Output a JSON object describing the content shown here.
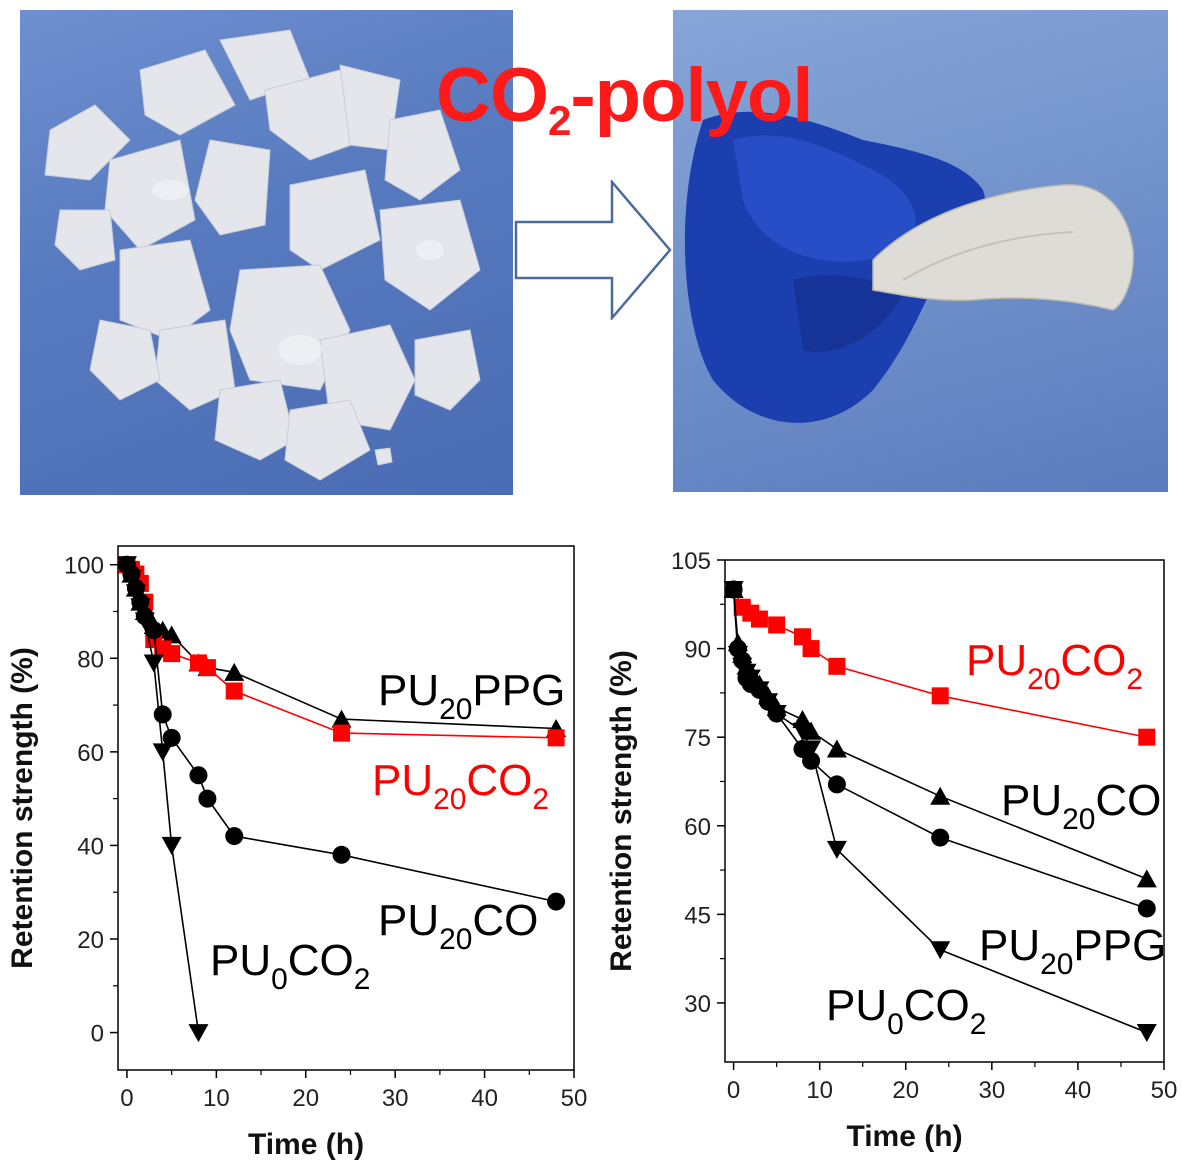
{
  "headline": {
    "main": "CO",
    "sub": "2",
    "rest": "-polyol",
    "color": "#ff1a1a"
  },
  "arrow": {
    "direction": "right"
  },
  "photos": {
    "left": "film fragments",
    "right": "flexible film held by gloved hand"
  },
  "chart_data": [
    {
      "type": "line",
      "xlabel": "Time (h)",
      "ylabel": "Retention strength (%)",
      "xlim": [
        -1,
        50
      ],
      "ylim": [
        -8,
        104
      ],
      "xticks": [
        0,
        10,
        20,
        30,
        40,
        50
      ],
      "yticks": [
        0,
        20,
        40,
        60,
        80,
        100
      ],
      "series": [
        {
          "name": "PU20PPG",
          "label_base": "PU",
          "label_sub": "20",
          "label_tail": "PPG",
          "label_sub2": "",
          "color": "#000000",
          "marker": "triangle-up",
          "x": [
            0,
            0.5,
            1,
            1.5,
            2,
            3,
            4,
            5,
            8,
            9,
            12,
            24,
            48
          ],
          "y": [
            100,
            98,
            95,
            92,
            90,
            87,
            86,
            85,
            79,
            78,
            77,
            67,
            65
          ]
        },
        {
          "name": "PU20CO2",
          "label_base": "PU",
          "label_sub": "20",
          "label_tail": "CO",
          "label_sub2": "2",
          "color": "#ff0000",
          "marker": "square",
          "x": [
            0,
            0.5,
            1,
            1.5,
            2,
            3,
            4,
            5,
            8,
            9,
            12,
            24,
            48
          ],
          "y": [
            100,
            99,
            98,
            96,
            92,
            84,
            82,
            81,
            79,
            78,
            73,
            64,
            63
          ]
        },
        {
          "name": "PU20CO",
          "label_base": "PU",
          "label_sub": "20",
          "label_tail": "CO",
          "label_sub2": "",
          "color": "#000000",
          "marker": "circle",
          "x": [
            0,
            0.5,
            1,
            1.5,
            2,
            3,
            4,
            5,
            8,
            9,
            12,
            24,
            48
          ],
          "y": [
            100,
            98,
            95,
            92,
            89,
            86,
            68,
            63,
            55,
            50,
            42,
            38,
            28
          ]
        },
        {
          "name": "PU0CO2",
          "label_base": "PU",
          "label_sub": "0",
          "label_tail": "CO",
          "label_sub2": "2",
          "color": "#000000",
          "marker": "triangle-down",
          "x": [
            0,
            0.5,
            1,
            1.5,
            2,
            3,
            4,
            5,
            8
          ],
          "y": [
            100,
            97,
            94,
            91,
            88,
            79,
            60,
            40,
            0
          ]
        }
      ]
    },
    {
      "type": "line",
      "xlabel": "Time (h)",
      "ylabel": "Retention strength (%)",
      "xlim": [
        -1,
        50
      ],
      "ylim": [
        20,
        105
      ],
      "xticks": [
        0,
        10,
        20,
        30,
        40,
        50
      ],
      "yticks": [
        30,
        45,
        60,
        75,
        90,
        105
      ],
      "series": [
        {
          "name": "PU20CO2",
          "label_base": "PU",
          "label_sub": "20",
          "label_tail": "CO",
          "label_sub2": "2",
          "color": "#ff0000",
          "marker": "square",
          "x": [
            0,
            1,
            2,
            3,
            5,
            8,
            9,
            12,
            24,
            48
          ],
          "y": [
            100,
            97,
            96,
            95,
            94,
            92,
            90,
            87,
            82,
            75
          ]
        },
        {
          "name": "PU20CO",
          "label_base": "PU",
          "label_sub": "20",
          "label_tail": "CO",
          "label_sub2": "",
          "color": "#000000",
          "marker": "triangle-up",
          "x": [
            0,
            0.5,
            1,
            1.5,
            2,
            3,
            4,
            5,
            8,
            9,
            12,
            24,
            48
          ],
          "y": [
            100,
            91,
            89,
            87,
            86,
            84,
            82,
            80,
            78,
            76,
            73,
            65,
            51
          ]
        },
        {
          "name": "PU20PPG",
          "label_base": "PU",
          "label_sub": "20",
          "label_tail": "PPG",
          "label_sub2": "",
          "color": "#000000",
          "marker": "circle",
          "x": [
            0,
            0.5,
            1,
            1.5,
            2,
            3,
            4,
            5,
            8,
            9,
            12,
            24,
            48
          ],
          "y": [
            100,
            90,
            88,
            85,
            84,
            83,
            81,
            79,
            73,
            71,
            67,
            58,
            46
          ]
        },
        {
          "name": "PU0CO2",
          "label_base": "PU",
          "label_sub": "0",
          "label_tail": "CO",
          "label_sub2": "2",
          "color": "#000000",
          "marker": "triangle-down",
          "x": [
            0,
            0.5,
            1,
            1.5,
            2,
            3,
            4,
            5,
            8,
            9,
            12,
            24,
            48
          ],
          "y": [
            100,
            89,
            87,
            86,
            85,
            83,
            81,
            79,
            76,
            73,
            56,
            39,
            25
          ]
        }
      ]
    }
  ]
}
